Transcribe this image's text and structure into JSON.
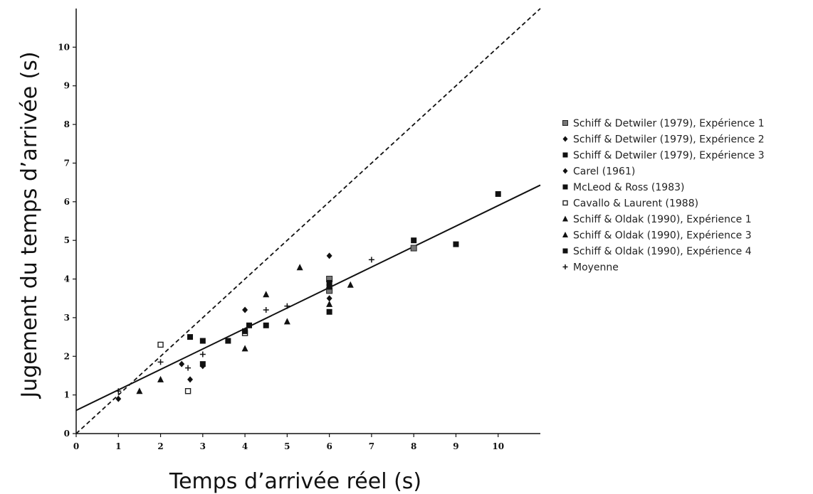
{
  "chart_data": {
    "type": "scatter",
    "xlabel": "Temps d’arrivée réel (s)",
    "ylabel": "Jugement du temps d’arrivée (s)",
    "xlim": [
      0,
      11
    ],
    "ylim": [
      0,
      11
    ],
    "x_ticks": [
      0,
      1,
      2,
      3,
      4,
      5,
      6,
      7,
      8,
      9,
      10
    ],
    "y_ticks": [
      0,
      1,
      2,
      3,
      4,
      5,
      6,
      7,
      8,
      9,
      10
    ],
    "grid": false,
    "legend_position": "right",
    "series": [
      {
        "name": "Schiff & Detwiler (1979), Expérience 1",
        "marker": "square-gray",
        "points": [
          [
            6,
            4.0
          ],
          [
            6,
            3.7
          ],
          [
            8,
            4.8
          ]
        ]
      },
      {
        "name": "Schiff & Detwiler (1979), Expérience 2",
        "marker": "diamond",
        "points": [
          [
            1,
            0.9
          ],
          [
            2.7,
            1.4
          ],
          [
            4,
            3.2
          ],
          [
            6,
            4.6
          ]
        ]
      },
      {
        "name": "Schiff & Detwiler (1979), Expérience 3",
        "marker": "square",
        "points": [
          [
            2.7,
            2.5
          ],
          [
            3,
            2.4
          ],
          [
            4.1,
            2.8
          ],
          [
            6,
            3.9
          ],
          [
            8,
            5.0
          ]
        ]
      },
      {
        "name": "Carel (1961)",
        "marker": "diamond",
        "points": [
          [
            2.5,
            1.8
          ],
          [
            3,
            1.75
          ],
          [
            6,
            3.5
          ]
        ]
      },
      {
        "name": "McLeod & Ross (1983)",
        "marker": "square",
        "points": [
          [
            3.6,
            2.4
          ],
          [
            4.5,
            2.8
          ],
          [
            6,
            3.8
          ],
          [
            9,
            4.9
          ]
        ]
      },
      {
        "name": "Cavallo & Laurent (1988)",
        "marker": "square-open",
        "points": [
          [
            2,
            2.3
          ],
          [
            2.65,
            1.1
          ],
          [
            4,
            2.6
          ]
        ]
      },
      {
        "name": "Schiff & Oldak (1990), Expérience 1",
        "marker": "triangle",
        "points": [
          [
            1.5,
            1.1
          ],
          [
            2,
            1.4
          ],
          [
            4,
            2.2
          ],
          [
            4.5,
            3.6
          ],
          [
            5,
            2.9
          ],
          [
            5.3,
            4.3
          ],
          [
            6.5,
            3.85
          ]
        ]
      },
      {
        "name": "Schiff & Oldak (1990), Expérience 3",
        "marker": "triangle",
        "points": [
          [
            6,
            3.35
          ]
        ]
      },
      {
        "name": "Schiff & Oldak (1990), Expérience 4",
        "marker": "square",
        "points": [
          [
            3,
            1.8
          ],
          [
            4,
            2.65
          ],
          [
            6,
            3.15
          ],
          [
            10,
            6.2
          ]
        ]
      },
      {
        "name": "Moyenne",
        "marker": "plus",
        "points": [
          [
            1,
            1.1
          ],
          [
            2,
            1.85
          ],
          [
            2.65,
            1.7
          ],
          [
            3,
            2.05
          ],
          [
            4.5,
            3.2
          ],
          [
            5,
            3.3
          ],
          [
            7,
            4.5
          ]
        ]
      }
    ],
    "lines": [
      {
        "style": "dashed",
        "slope": 1,
        "intercept": 0
      },
      {
        "style": "solid",
        "slope": 0.53,
        "intercept": 0.6
      }
    ]
  }
}
